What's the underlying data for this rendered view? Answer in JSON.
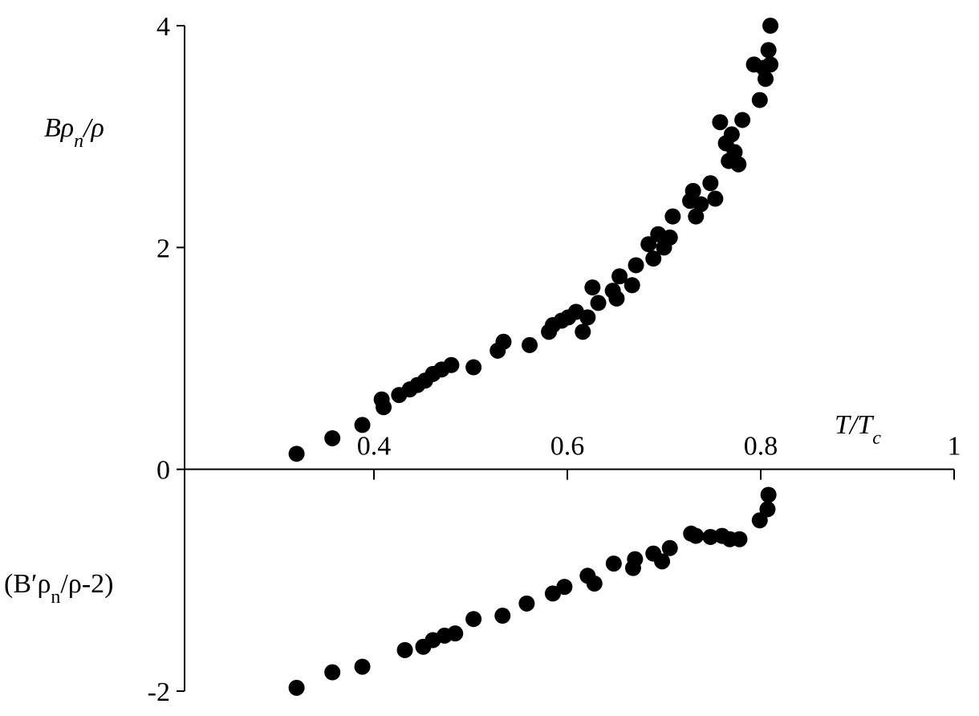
{
  "chart_data": {
    "type": "scatter",
    "x_label": [
      {
        "text": "T/T"
      },
      {
        "text": "c",
        "sub": true
      }
    ],
    "y_label": [
      {
        "text": "Bρ"
      },
      {
        "text": "n",
        "sub": true
      },
      {
        "text": "/ρ"
      }
    ],
    "y_label_lower": [
      {
        "text": "(B′ρ"
      },
      {
        "text": "n",
        "sub": true
      },
      {
        "text": "/ρ-2)"
      }
    ],
    "xlim": [
      0.2,
      1
    ],
    "xticks": [
      0.4,
      0.6,
      0.8,
      1
    ],
    "ylim": [
      -2,
      4
    ],
    "yticks": [
      -2,
      0,
      2,
      4
    ],
    "series": [
      {
        "color": "#000000",
        "x": [
          0.32,
          0.357,
          0.388,
          0.408,
          0.41,
          0.426,
          0.437,
          0.445,
          0.453,
          0.461,
          0.47,
          0.48,
          0.503,
          0.528,
          0.534,
          0.561,
          0.581,
          0.585,
          0.594,
          0.601,
          0.609,
          0.616,
          0.621,
          0.626,
          0.632,
          0.647,
          0.651,
          0.654,
          0.667,
          0.671,
          0.684,
          0.689,
          0.694,
          0.7,
          0.706,
          0.709,
          0.727,
          0.73,
          0.733,
          0.738,
          0.748,
          0.753,
          0.758,
          0.764,
          0.767,
          0.77,
          0.773,
          0.777,
          0.781,
          0.793,
          0.799,
          0.803,
          0.805,
          0.808,
          0.81,
          0.81
        ],
        "values": [
          0.14,
          0.28,
          0.4,
          0.63,
          0.56,
          0.67,
          0.72,
          0.76,
          0.8,
          0.86,
          0.9,
          0.94,
          0.92,
          1.07,
          1.15,
          1.12,
          1.24,
          1.3,
          1.34,
          1.37,
          1.42,
          1.24,
          1.37,
          1.64,
          1.5,
          1.61,
          1.54,
          1.74,
          1.66,
          1.84,
          2.03,
          1.9,
          2.12,
          2.0,
          2.09,
          2.28,
          2.42,
          2.51,
          2.28,
          2.39,
          2.58,
          2.44,
          3.13,
          2.94,
          2.78,
          3.02,
          2.86,
          2.75,
          3.15,
          3.65,
          3.33,
          3.62,
          3.52,
          3.78,
          3.65,
          4.0
        ]
      },
      {
        "color": "#000000",
        "x": [
          0.32,
          0.357,
          0.388,
          0.432,
          0.451,
          0.461,
          0.473,
          0.484,
          0.503,
          0.533,
          0.558,
          0.585,
          0.597,
          0.621,
          0.628,
          0.648,
          0.668,
          0.67,
          0.689,
          0.698,
          0.706,
          0.728,
          0.733,
          0.748,
          0.76,
          0.768,
          0.778,
          0.799,
          0.807,
          0.808
        ],
        "values": [
          -1.97,
          -1.83,
          -1.78,
          -1.63,
          -1.6,
          -1.54,
          -1.5,
          -1.48,
          -1.35,
          -1.32,
          -1.21,
          -1.12,
          -1.06,
          -0.96,
          -1.03,
          -0.85,
          -0.89,
          -0.81,
          -0.76,
          -0.83,
          -0.71,
          -0.58,
          -0.6,
          -0.61,
          -0.6,
          -0.63,
          -0.63,
          -0.46,
          -0.36,
          -0.23
        ]
      }
    ]
  }
}
